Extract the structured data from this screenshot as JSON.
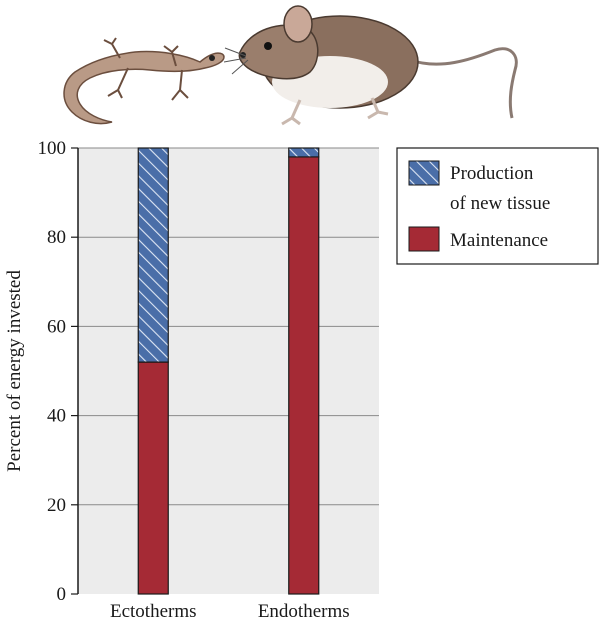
{
  "chart_data": {
    "type": "bar",
    "stacked": true,
    "categories": [
      "Ectotherms",
      "Endotherms"
    ],
    "series": [
      {
        "name": "Maintenance",
        "values": [
          52,
          98
        ],
        "color": "#a52a35",
        "pattern": "solid"
      },
      {
        "name": "Production of new tissue",
        "values": [
          48,
          2
        ],
        "color": "#4a6ea8",
        "pattern": "hatched"
      }
    ],
    "ylabel": "Percent of energy invested",
    "xlabel": "",
    "ylim": [
      0,
      100
    ],
    "yticks": [
      0,
      20,
      40,
      60,
      80,
      100
    ],
    "grid": true,
    "legend": {
      "placement": "top-right",
      "entries": [
        {
          "line1": "Production",
          "line2": "of new tissue",
          "series": "Production of new tissue"
        },
        {
          "line1": "Maintenance",
          "line2": "",
          "series": "Maintenance"
        }
      ]
    },
    "illustrations": [
      "salamander",
      "mouse"
    ]
  }
}
